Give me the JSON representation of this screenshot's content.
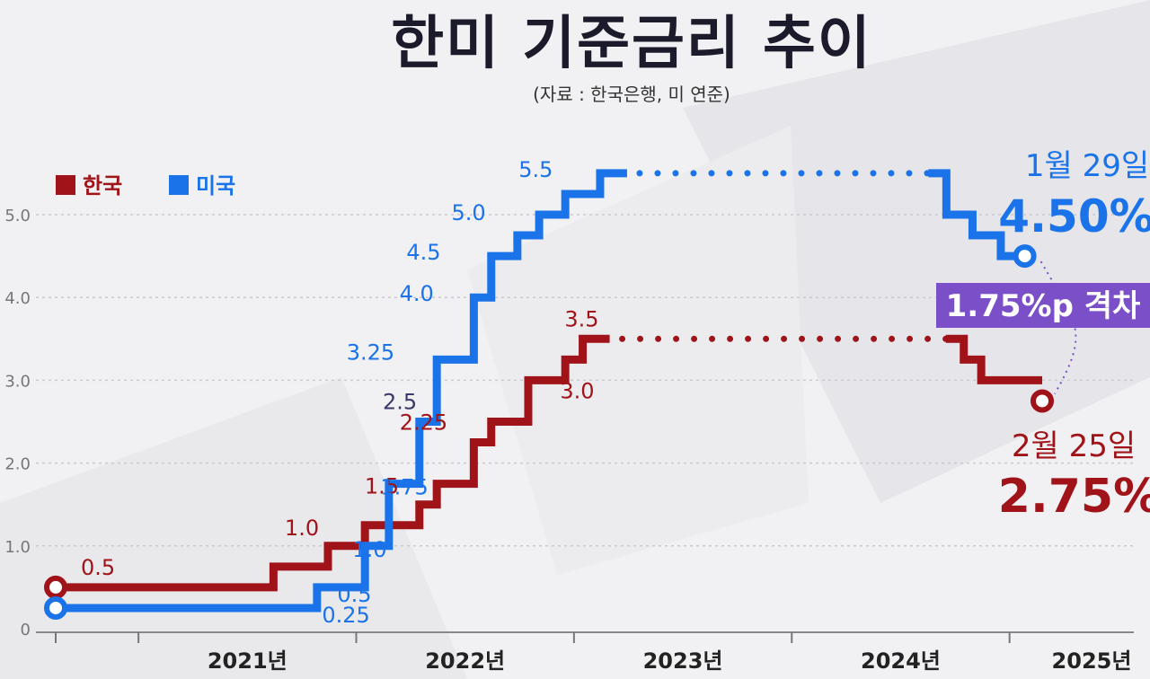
{
  "title": "한미 기준금리 추이",
  "source": "(자료 : 한국은행, 미 연준)",
  "legend": [
    {
      "name": "한국",
      "color": "#a01419"
    },
    {
      "name": "미국",
      "color": "#1a73e8"
    }
  ],
  "colors": {
    "korea": "#a01419",
    "us": "#1a73e8",
    "gap": "#7a4fc7",
    "title": "#1b1b2b"
  },
  "chart_data": {
    "type": "line",
    "step": true,
    "title": "한미 기준금리 추이",
    "xlabel": "",
    "ylabel": "",
    "xlim": [
      2020.62,
      2025.35
    ],
    "ylim": [
      0,
      5.5
    ],
    "yticks": [
      "0",
      "1.0",
      "2.0",
      "3.0",
      "4.0",
      "5.0"
    ],
    "ytick_values": [
      0,
      1,
      2,
      3,
      4,
      5
    ],
    "xticks": [
      {
        "label": "2021년",
        "at": 2021.5
      },
      {
        "label": "2022년",
        "at": 2022.5
      },
      {
        "label": "2023년",
        "at": 2023.5
      },
      {
        "label": "2024년",
        "at": 2024.5
      },
      {
        "label": "2025년",
        "at": 2025.38
      }
    ],
    "year_boundaries": [
      2021.0,
      2022.0,
      2023.0,
      2024.0,
      2025.0
    ],
    "series": [
      {
        "name": "한국",
        "steps": [
          {
            "t": 2020.62,
            "v": 0.5
          },
          {
            "t": 2021.62,
            "v": 0.75
          },
          {
            "t": 2021.87,
            "v": 1.0
          },
          {
            "t": 2022.04,
            "v": 1.25
          },
          {
            "t": 2022.29,
            "v": 1.5
          },
          {
            "t": 2022.37,
            "v": 1.75
          },
          {
            "t": 2022.54,
            "v": 2.25
          },
          {
            "t": 2022.62,
            "v": 2.5
          },
          {
            "t": 2022.79,
            "v": 3.0
          },
          {
            "t": 2022.96,
            "v": 3.25
          },
          {
            "t": 2023.04,
            "v": 3.5
          }
        ],
        "hold_until": 2024.79,
        "tail": [
          {
            "t": 2024.79,
            "v": 3.25
          },
          {
            "t": 2024.87,
            "v": 3.0
          }
        ],
        "end": {
          "t": 2025.15,
          "v": 2.75
        },
        "labels": [
          {
            "text": "0.5",
            "t": 2020.74,
            "v": 0.5
          },
          {
            "text": "1.0",
            "t": 2021.8,
            "v": 1.0
          },
          {
            "text": "1.5",
            "t": 2022.2,
            "v": 1.5
          },
          {
            "text": "2.25",
            "t": 2022.4,
            "v": 2.25
          },
          {
            "text": "3.5",
            "t": 2023.06,
            "v": 3.5
          },
          {
            "text": "3.0",
            "t": 2022.99,
            "v": 3.0
          }
        ]
      },
      {
        "name": "미국",
        "steps": [
          {
            "t": 2020.62,
            "v": 0.25
          },
          {
            "t": 2021.82,
            "v": 0.5
          },
          {
            "t": 2022.04,
            "v": 1.0
          },
          {
            "t": 2022.15,
            "v": 1.75
          },
          {
            "t": 2022.29,
            "v": 2.5
          },
          {
            "t": 2022.37,
            "v": 3.25
          },
          {
            "t": 2022.54,
            "v": 4.0
          },
          {
            "t": 2022.62,
            "v": 4.5
          },
          {
            "t": 2022.74,
            "v": 4.75
          },
          {
            "t": 2022.84,
            "v": 5.0
          },
          {
            "t": 2022.96,
            "v": 5.25
          },
          {
            "t": 2023.12,
            "v": 5.5
          }
        ],
        "hold_until": 2024.71,
        "tail": [
          {
            "t": 2024.71,
            "v": 5.0
          },
          {
            "t": 2024.83,
            "v": 4.75
          },
          {
            "t": 2024.96,
            "v": 4.5
          }
        ],
        "end": {
          "t": 2025.07,
          "v": 4.5
        },
        "labels": [
          {
            "text": "0.25",
            "t": 2021.92,
            "v": 0.25
          },
          {
            "text": "0.5",
            "t": 2022.0,
            "v": 0.5
          },
          {
            "text": "1.0",
            "t": 2022.07,
            "v": 1.0
          },
          {
            "text": "1.75",
            "t": 2022.18,
            "v": 1.75
          },
          {
            "text": "2.5",
            "t": 2022.25,
            "v": 2.5
          },
          {
            "text": "3.25",
            "t": 2022.14,
            "v": 3.25
          },
          {
            "text": "4.0",
            "t": 2022.36,
            "v": 4.0
          },
          {
            "text": "4.5",
            "t": 2022.4,
            "v": 4.5
          },
          {
            "text": "5.0",
            "t": 2022.64,
            "v": 5.0
          },
          {
            "text": "5.5",
            "t": 2022.94,
            "v": 5.5
          }
        ]
      }
    ],
    "annotations": {
      "us": {
        "date": "1월 29일",
        "value": "4.50%"
      },
      "korea": {
        "date": "2월 25일",
        "value": "2.75%"
      },
      "gap": "1.75%p 격차"
    }
  }
}
